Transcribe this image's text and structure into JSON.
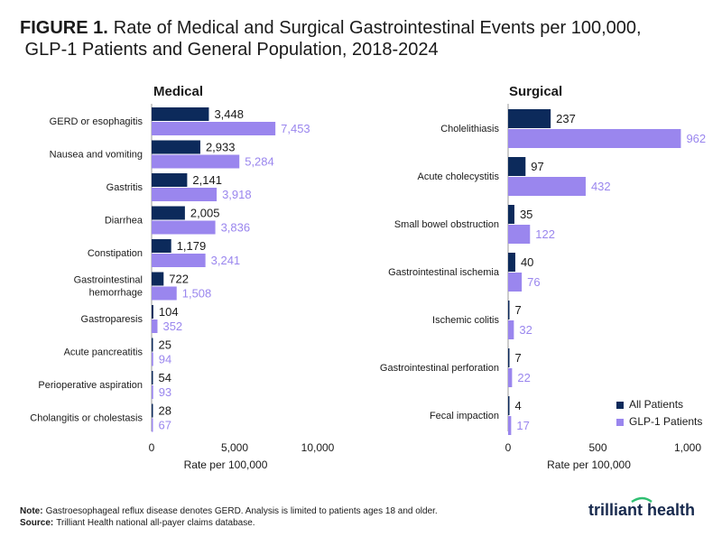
{
  "title_label": "FIGURE 1.",
  "title": "Rate of Medical and Surgical Gastrointestinal Events per 100,000, GLP-1 Patients and General Population, 2018-2024",
  "note_label": "Note:",
  "note": "Gastroesophageal reflux disease denotes GERD. Analysis is limited to patients ages 18 and older.",
  "source_label": "Source:",
  "source": "Trilliant Health national all-payer claims database.",
  "logo": "trilliant health",
  "chart_data": [
    {
      "type": "barh",
      "title": "Medical",
      "categories": [
        "GERD or esophagitis",
        "Nausea and vomiting",
        "Gastritis",
        "Diarrhea",
        "Constipation",
        "Gastrointestinal hemorrhage",
        "Gastroparesis",
        "Acute pancreatitis",
        "Perioperative aspiration",
        "Cholangitis or cholestasis"
      ],
      "series": [
        {
          "name": "All Patients",
          "color": "#0c2a5b",
          "values": [
            3448,
            2933,
            2141,
            2005,
            1179,
            722,
            104,
            25,
            54,
            28
          ],
          "value_labels": [
            "3,448",
            "2,933",
            "2,141",
            "2,005",
            "1,179",
            "722",
            "104",
            "25",
            "54",
            "28"
          ]
        },
        {
          "name": "GLP-1 Patients",
          "color": "#9a86ee",
          "values": [
            7453,
            5284,
            3918,
            3836,
            3241,
            1508,
            352,
            94,
            93,
            67
          ],
          "value_labels": [
            "7,453",
            "5,284",
            "3,918",
            "3,836",
            "3,241",
            "1,508",
            "352",
            "94",
            "93",
            "67"
          ]
        }
      ],
      "xlim": [
        0,
        10000
      ],
      "xticks": [
        0,
        {
          "value": 5000,
          "label": "5,000"
        },
        {
          "value": 10000,
          "label": "10,000"
        }
      ],
      "xlabel": "Rate per 100,000"
    },
    {
      "type": "barh",
      "title": "Surgical",
      "categories": [
        "Cholelithiasis",
        "Acute cholecystitis",
        "Small bowel obstruction",
        "Gastrointestinal ischemia",
        "Ischemic colitis",
        "Gastrointestinal perforation",
        "Fecal impaction"
      ],
      "series": [
        {
          "name": "All Patients",
          "color": "#0c2a5b",
          "values": [
            237,
            97,
            35,
            40,
            7,
            7,
            4
          ]
        },
        {
          "name": "GLP-1 Patients",
          "color": "#9a86ee",
          "values": [
            962,
            432,
            122,
            76,
            32,
            22,
            17
          ]
        }
      ],
      "xlim": [
        0,
        1000
      ],
      "xticks": [
        0,
        500,
        {
          "value": 1000,
          "label": "1,000"
        }
      ],
      "xlabel": "Rate per 100,000",
      "legend": "lower right"
    }
  ]
}
